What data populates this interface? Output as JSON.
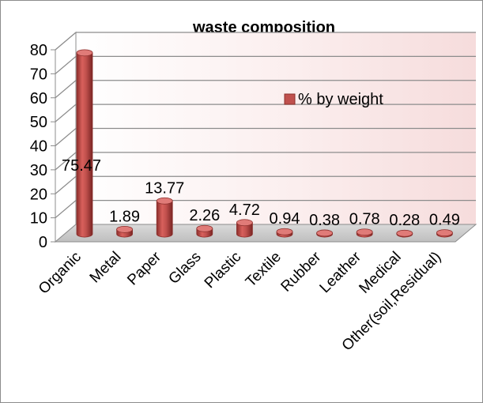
{
  "chart_data": {
    "type": "bar",
    "title": "waste composition",
    "categories": [
      "Organic",
      "Metal",
      "Paper",
      "Glass",
      "Plastic",
      "Textile",
      "Rubber",
      "Leather",
      "Medical",
      "Other(soil,Residual)"
    ],
    "series": [
      {
        "name": "% by weight",
        "values": [
          75.47,
          1.89,
          13.77,
          2.26,
          4.72,
          0.94,
          0.38,
          0.78,
          0.28,
          0.49
        ],
        "labels": [
          "75.47",
          "1.89",
          "13.77",
          "2.26",
          "4.72",
          "0.94",
          "0.38",
          "0.78",
          "0.28",
          "0.49"
        ]
      }
    ],
    "yticks": [
      "0",
      "10",
      "20",
      "30",
      "40",
      "50",
      "60",
      "70",
      "80"
    ],
    "ylim": [
      0,
      80
    ],
    "grid": true,
    "legend": "right",
    "colors": {
      "bar": "#c0504d",
      "bar_dark": "#8c2f2c",
      "bar_light": "#e07b78",
      "wall": "#f8e6e6",
      "grid": "#8c8c8c"
    }
  }
}
